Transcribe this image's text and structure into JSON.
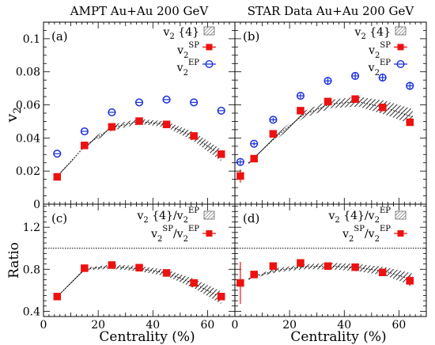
{
  "chart_data": [
    {
      "panel": "a",
      "type": "scatter",
      "title": "AMPT Au+Au 200 GeV",
      "panel_label": "(a)",
      "ylabel": "v2",
      "xlabel": "",
      "xlim": [
        0,
        70
      ],
      "ylim": [
        0,
        0.11
      ],
      "yticks": [
        "0",
        "0.02",
        "0.04",
        "0.06",
        "0.08",
        "0.1"
      ],
      "legend_position": "top-right",
      "series": [
        {
          "name": "v2{4}",
          "style": "band",
          "x": [
            5,
            15,
            25,
            35,
            45,
            55,
            65
          ],
          "lo": [
            0.0165,
            0.034,
            0.0445,
            0.0485,
            0.0465,
            0.038,
            0.026
          ],
          "hi": [
            0.017,
            0.036,
            0.048,
            0.0515,
            0.05,
            0.0435,
            0.033
          ]
        },
        {
          "name": "v2SP",
          "style": "square",
          "color": "#ee1111",
          "x": [
            5,
            15,
            25,
            35,
            45,
            55,
            65
          ],
          "y": [
            0.0165,
            0.0355,
            0.0467,
            0.0502,
            0.0482,
            0.0412,
            0.0302
          ]
        },
        {
          "name": "v2EP",
          "style": "open-circle",
          "color": "#1a2fe0",
          "x": [
            5,
            15,
            25,
            35,
            45,
            55,
            65
          ],
          "y": [
            0.0305,
            0.044,
            0.0555,
            0.0615,
            0.0632,
            0.0615,
            0.0565
          ]
        }
      ]
    },
    {
      "panel": "b",
      "type": "scatter",
      "title": "STAR Data Au+Au 200 GeV",
      "panel_label": "(b)",
      "xlim": [
        0,
        70
      ],
      "ylim": [
        0,
        0.11
      ],
      "legend_position": "top-right",
      "series": [
        {
          "name": "v2{4}",
          "style": "band",
          "x": [
            5,
            15,
            25,
            35,
            45,
            55,
            65
          ],
          "lo": [
            0.024,
            0.039,
            0.052,
            0.058,
            0.059,
            0.054,
            0.048
          ],
          "hi": [
            0.026,
            0.042,
            0.056,
            0.063,
            0.065,
            0.0625,
            0.0575
          ]
        },
        {
          "name": "v2SP",
          "style": "square",
          "color": "#ee1111",
          "x": [
            2,
            7,
            14,
            24,
            34,
            44,
            54,
            64
          ],
          "y": [
            0.017,
            0.0275,
            0.0425,
            0.0565,
            0.062,
            0.0635,
            0.0585,
            0.0495
          ],
          "err": [
            0.004,
            0.0015,
            0.001,
            0.001,
            0.001,
            0.001,
            0.0012,
            0.002
          ]
        },
        {
          "name": "v2EP",
          "style": "open-circle",
          "color": "#1a2fe0",
          "x": [
            2,
            7,
            14,
            24,
            34,
            44,
            54,
            64
          ],
          "y": [
            0.0255,
            0.0365,
            0.051,
            0.0655,
            0.0745,
            0.0775,
            0.0765,
            0.0715
          ],
          "err": [
            0.0015,
            0.0012,
            0.0012,
            0.0015,
            0.002,
            0.0022,
            0.0022,
            0.0025
          ]
        }
      ]
    },
    {
      "panel": "c",
      "type": "scatter",
      "panel_label": "(c)",
      "ylabel": "Ratio",
      "xlabel": "Centrality (%)",
      "xlim": [
        0,
        70
      ],
      "ylim": [
        0.35,
        1.42
      ],
      "yticks": [
        "0.4",
        "0.8",
        "1.2"
      ],
      "xticks": [
        "0",
        "20",
        "40",
        "60"
      ],
      "reference_line": 1.0,
      "legend_position": "top-right",
      "series": [
        {
          "name": "v2{4}/v2EP",
          "style": "band",
          "x": [
            5,
            15,
            25,
            35,
            45,
            55,
            65
          ],
          "lo": [
            0.535,
            0.79,
            0.805,
            0.78,
            0.735,
            0.62,
            0.47
          ],
          "hi": [
            0.545,
            0.815,
            0.845,
            0.83,
            0.795,
            0.71,
            0.59
          ]
        },
        {
          "name": "v2SP/v2EP",
          "style": "square",
          "color": "#ee1111",
          "x": [
            5,
            15,
            25,
            35,
            45,
            55,
            65
          ],
          "y": [
            0.54,
            0.81,
            0.84,
            0.815,
            0.765,
            0.67,
            0.54
          ]
        }
      ]
    },
    {
      "panel": "d",
      "type": "scatter",
      "panel_label": "(d)",
      "xlabel": "Centrality (%)",
      "xlim": [
        0,
        70
      ],
      "ylim": [
        0.35,
        1.42
      ],
      "xticks": [
        "0",
        "20",
        "40",
        "60"
      ],
      "reference_line": 1.0,
      "legend_position": "top-right",
      "series": [
        {
          "name": "v2{4}/v2EP",
          "style": "band",
          "x": [
            5,
            15,
            25,
            35,
            45,
            55,
            65
          ],
          "lo": [
            0.7,
            0.77,
            0.8,
            0.8,
            0.78,
            0.74,
            0.64
          ],
          "hi": [
            0.72,
            0.81,
            0.845,
            0.86,
            0.85,
            0.82,
            0.76
          ]
        },
        {
          "name": "v2SP/v2EP",
          "style": "square",
          "color": "#ee1111",
          "x": [
            2,
            7,
            14,
            24,
            34,
            44,
            54,
            64
          ],
          "y": [
            0.67,
            0.75,
            0.83,
            0.86,
            0.83,
            0.82,
            0.77,
            0.69
          ],
          "err": [
            0.2,
            0.03,
            0.02,
            0.015,
            0.015,
            0.015,
            0.02,
            0.05
          ]
        }
      ]
    }
  ]
}
